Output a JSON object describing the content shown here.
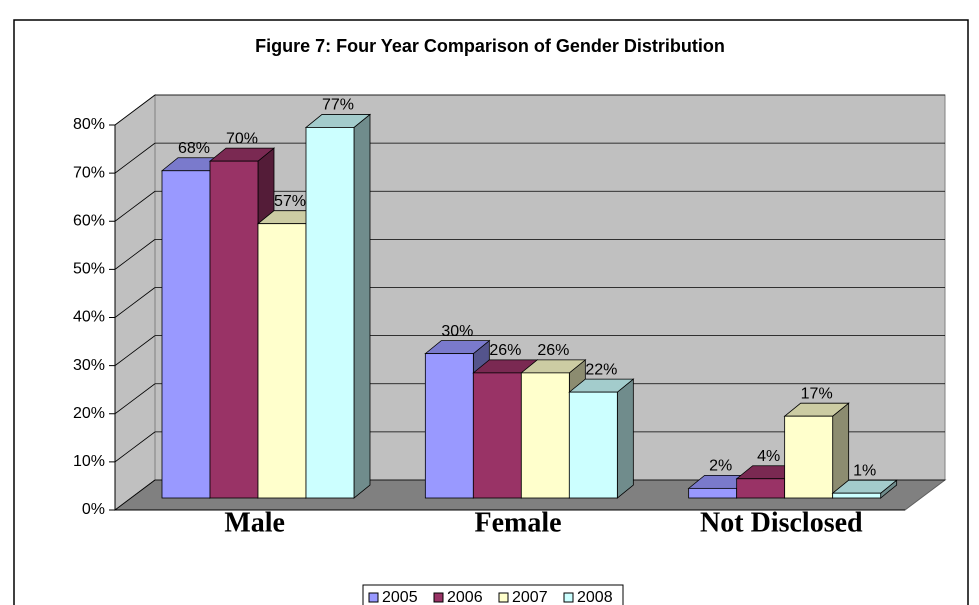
{
  "chart_data": {
    "type": "bar3d",
    "title": "Figure 7: Four Year Comparison of Gender Distribution",
    "categories": [
      "Male",
      "Female",
      "Not Disclosed"
    ],
    "series": [
      {
        "name": "2005",
        "color": "#9999ff",
        "values": [
          68,
          30,
          2
        ],
        "value_labels": [
          "68%",
          "30%",
          "2%"
        ]
      },
      {
        "name": "2006",
        "color": "#993366",
        "values": [
          70,
          26,
          4
        ],
        "value_labels": [
          "70%",
          "26%",
          "4%"
        ]
      },
      {
        "name": "2007",
        "color": "#ffffcc",
        "values": [
          57,
          26,
          17
        ],
        "value_labels": [
          "57%",
          "26%",
          "17%"
        ]
      },
      {
        "name": "2008",
        "color": "#ccffff",
        "values": [
          77,
          22,
          1
        ],
        "value_labels": [
          "77%",
          "22%",
          "1%"
        ]
      }
    ],
    "ylim": [
      0,
      80
    ],
    "yticks": [
      {
        "value": 0,
        "label": "0%"
      },
      {
        "value": 10,
        "label": "10%"
      },
      {
        "value": 20,
        "label": "20%"
      },
      {
        "value": 30,
        "label": "30%"
      },
      {
        "value": 40,
        "label": "40%"
      },
      {
        "value": 50,
        "label": "50%"
      },
      {
        "value": 60,
        "label": "60%"
      },
      {
        "value": 70,
        "label": "70%"
      },
      {
        "value": 80,
        "label": "80%"
      }
    ],
    "grid": true,
    "legend": "bottom"
  }
}
